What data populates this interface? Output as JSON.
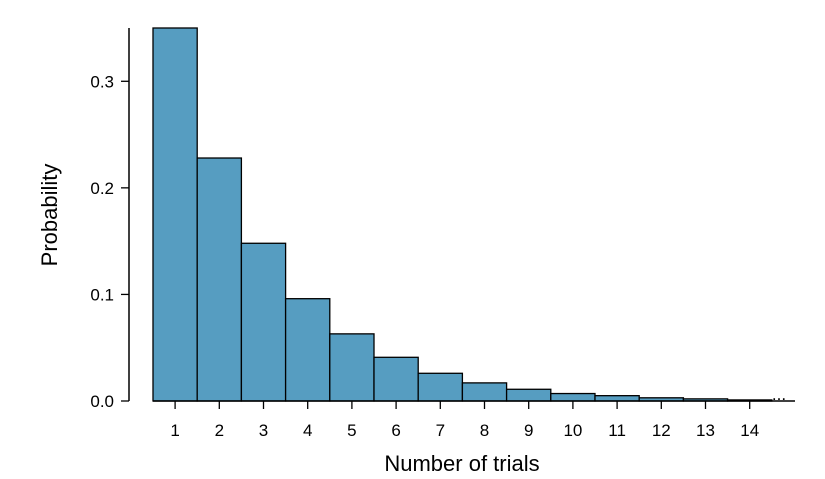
{
  "chart_data": {
    "type": "bar",
    "title": "",
    "xlabel": "Number of trials",
    "ylabel": "Probability",
    "categories": [
      "1",
      "2",
      "3",
      "4",
      "5",
      "6",
      "7",
      "8",
      "9",
      "10",
      "11",
      "12",
      "13",
      "14"
    ],
    "values": [
      0.35,
      0.228,
      0.148,
      0.096,
      0.063,
      0.041,
      0.026,
      0.017,
      0.011,
      0.007,
      0.005,
      0.003,
      0.002,
      0.001
    ],
    "ylim": [
      0,
      0.35
    ],
    "yticks": [
      0.0,
      0.1,
      0.2,
      0.3
    ],
    "ytick_labels": [
      "0.0",
      "0.1",
      "0.2",
      "0.3"
    ],
    "continuation_marker": "...",
    "grid": false,
    "bar_color": "#569dc1",
    "edge_color": "#000000"
  }
}
